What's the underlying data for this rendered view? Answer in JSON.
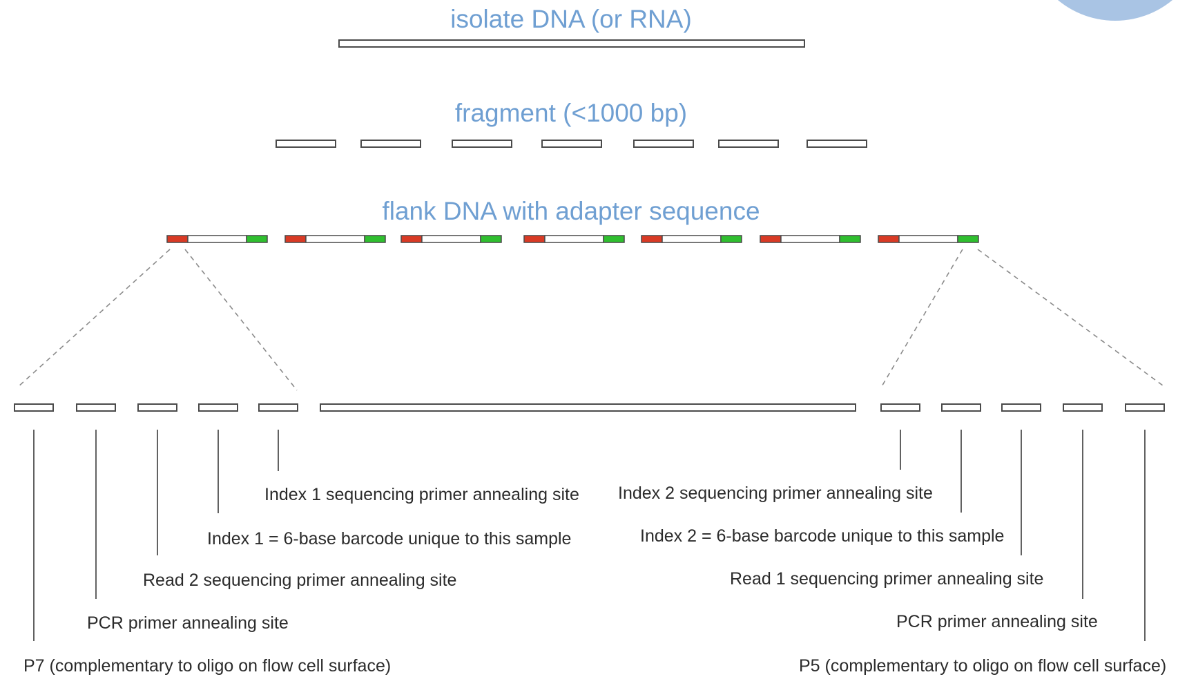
{
  "steps": {
    "isolate": "isolate DNA (or RNA)",
    "fragment": "fragment (<1000 bp)",
    "flank": "flank DNA with adapter sequence"
  },
  "colors": {
    "title": "#6f9fd2",
    "adapter_left": "#d93a25",
    "adapter_right": "#2fbf2f",
    "corner_decoration": "#a9c4e4"
  },
  "labels": {
    "left": {
      "index1_seq": "Index 1 sequencing primer annealing site",
      "index1_barcode": "Index 1 = 6-base barcode unique to this sample",
      "read2_seq": "Read 2 sequencing primer annealing site",
      "pcr": "PCR primer annealing site",
      "p7": "P7 (complementary to oligo on flow cell surface)"
    },
    "right": {
      "index2_seq": "Index 2 sequencing primer annealing site",
      "index2_barcode": "Index 2 = 6-base barcode unique to this sample",
      "read1_seq": "Read 1 sequencing primer annealing site",
      "pcr": "PCR primer annealing site",
      "p5": "P5 (complementary to oligo on flow cell surface)"
    }
  }
}
